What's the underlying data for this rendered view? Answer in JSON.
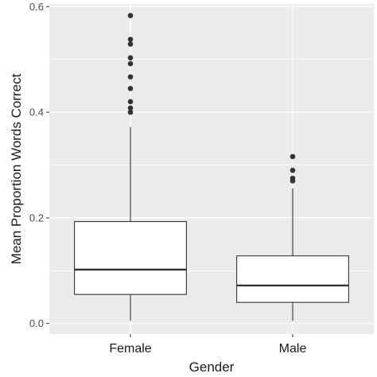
{
  "chart_data": {
    "type": "boxplot",
    "title": "",
    "xlabel": "Gender",
    "ylabel": "Mean Proportion Words Correct",
    "categories": [
      "Female",
      "Male"
    ],
    "ylim": [
      -0.02,
      0.605
    ],
    "y_ticks": [
      0.0,
      0.2,
      0.4,
      0.6
    ],
    "y_tick_labels": [
      "0.0",
      "0.2",
      "0.4",
      "0.6"
    ],
    "grid": true,
    "legend": "none",
    "colors": {
      "panel": "#ebebeb",
      "grid": "#ffffff",
      "box_fill": "#ffffff",
      "box_stroke": "#333333",
      "outlier": "#333333"
    },
    "boxes": [
      {
        "category": "Female",
        "whisker_low": 0.005,
        "q1": 0.055,
        "median": 0.102,
        "q3": 0.193,
        "whisker_high": 0.372,
        "outliers": [
          0.4,
          0.408,
          0.42,
          0.445,
          0.467,
          0.492,
          0.503,
          0.529,
          0.538,
          0.583
        ]
      },
      {
        "category": "Male",
        "whisker_low": 0.005,
        "q1": 0.04,
        "median": 0.072,
        "q3": 0.128,
        "whisker_high": 0.256,
        "outliers": [
          0.27,
          0.275,
          0.29,
          0.316
        ]
      }
    ]
  }
}
